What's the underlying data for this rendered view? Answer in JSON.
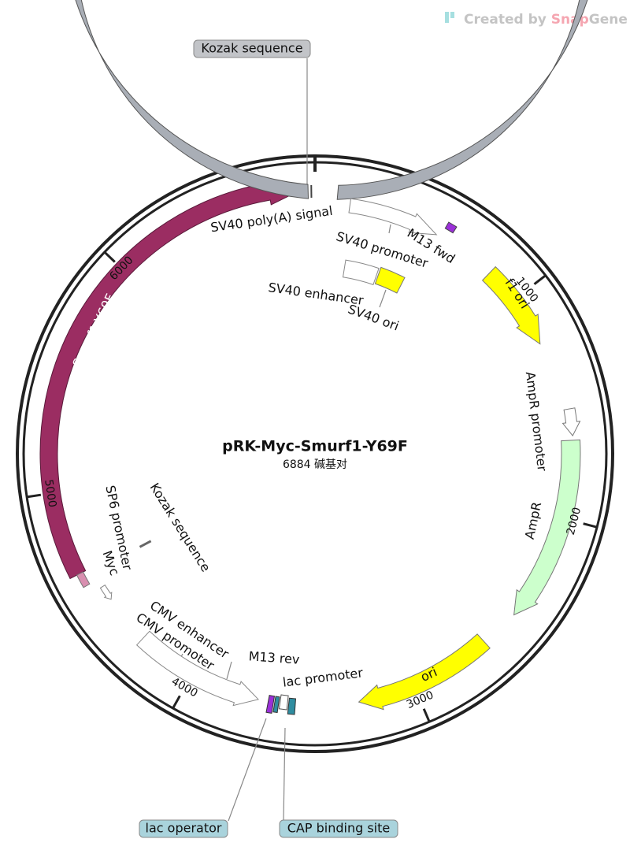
{
  "watermark": {
    "text": "Created by",
    "snap": "Snap",
    "gene": "Gene"
  },
  "title": "pRK-Myc-Smurf1-Y69F",
  "length": 6884,
  "length_unit": "碱基对",
  "ticks": [
    1000,
    2000,
    3000,
    4000,
    5000,
    6000
  ],
  "features": [
    "SV40 poly(A) signal",
    "SV40 promoter",
    "M13 fwd",
    "SV40 enhancer",
    "SV40 ori",
    "f1 ori",
    "AmpR promoter",
    "AmpR",
    "ori",
    "lac promoter",
    "M13 rev",
    "CMV enhancer",
    "CMV promoter",
    "SP6 promoter",
    "Myc",
    "Kozak sequence",
    "Smurf1-Y69F"
  ],
  "callouts": [
    "Kozak sequence",
    "lac operator",
    "CAP binding site"
  ]
}
